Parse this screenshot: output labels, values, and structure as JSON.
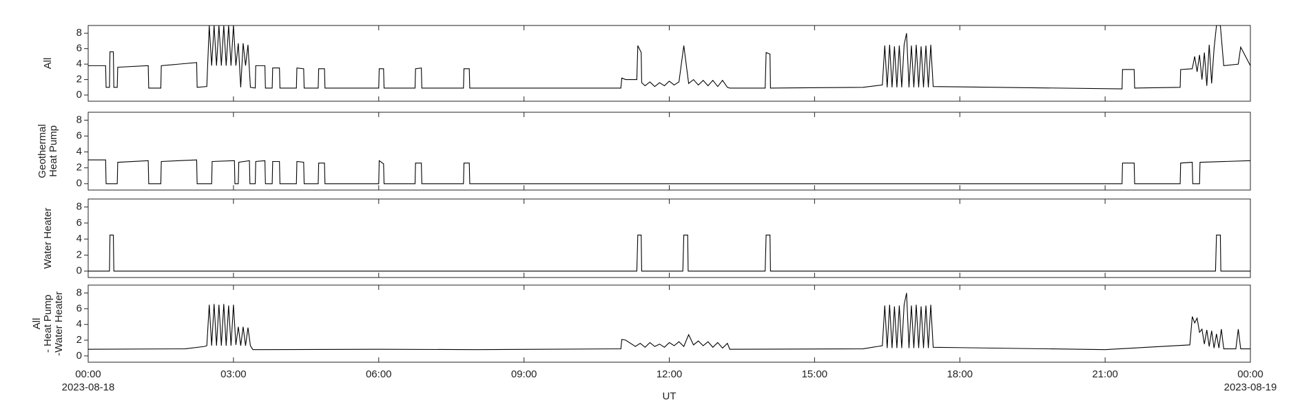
{
  "chart_data": [
    {
      "type": "line",
      "ylabel": [
        "All"
      ],
      "color": "#000000",
      "xlim": [
        0,
        24
      ],
      "ylim": [
        -0.8,
        9
      ],
      "yticks": [
        0,
        2,
        4,
        6,
        8
      ],
      "x": [
        0,
        0.36,
        0.37,
        0.44,
        0.45,
        0.52,
        0.53,
        0.6,
        0.61,
        1.24,
        1.25,
        1.5,
        1.51,
        2.24,
        2.25,
        2.45,
        2.5,
        2.55,
        2.6,
        2.65,
        2.7,
        2.75,
        2.8,
        2.85,
        2.9,
        2.95,
        3.0,
        3.05,
        3.1,
        3.15,
        3.2,
        3.25,
        3.3,
        3.35,
        3.45,
        3.46,
        3.65,
        3.66,
        3.8,
        3.81,
        3.95,
        3.96,
        4.3,
        4.31,
        4.45,
        4.46,
        4.75,
        4.76,
        4.88,
        4.89,
        6.0,
        6.01,
        6.1,
        6.11,
        6.75,
        6.76,
        6.88,
        6.89,
        7.75,
        7.76,
        7.87,
        7.88,
        11.0,
        11.02,
        11.1,
        11.33,
        11.35,
        11.42,
        11.43,
        11.5,
        11.6,
        11.7,
        11.8,
        11.9,
        12.0,
        12.1,
        12.2,
        12.3,
        12.4,
        12.5,
        12.6,
        12.7,
        12.8,
        12.9,
        13.0,
        13.1,
        13.2,
        13.25,
        13.98,
        14.0,
        14.08,
        14.09,
        16.0,
        16.4,
        16.45,
        16.5,
        16.55,
        16.6,
        16.65,
        16.7,
        16.75,
        16.8,
        16.85,
        16.9,
        16.95,
        17.0,
        17.05,
        17.1,
        17.15,
        17.2,
        17.25,
        17.3,
        17.35,
        17.4,
        17.45,
        21.35,
        21.36,
        21.6,
        21.61,
        22.55,
        22.56,
        22.8,
        22.85,
        22.9,
        22.95,
        23.0,
        23.05,
        23.1,
        23.15,
        23.2,
        23.25,
        23.3,
        23.38,
        23.45,
        23.75,
        23.8,
        24
      ],
      "values": [
        3.8,
        3.8,
        1.0,
        1.0,
        5.6,
        5.6,
        1.0,
        1.0,
        3.6,
        3.8,
        0.9,
        0.9,
        3.8,
        4.2,
        1.0,
        1.1,
        9.0,
        3.8,
        9.0,
        3.8,
        9.0,
        3.8,
        9.0,
        3.8,
        9.0,
        3.8,
        9.0,
        3.8,
        6.7,
        1.0,
        6.7,
        3.8,
        6.5,
        1.0,
        0.9,
        3.8,
        3.8,
        0.9,
        0.9,
        3.5,
        3.5,
        0.9,
        0.9,
        3.5,
        3.4,
        0.9,
        0.9,
        3.4,
        3.4,
        0.9,
        0.9,
        3.4,
        3.4,
        0.9,
        0.9,
        3.4,
        3.5,
        0.9,
        0.9,
        3.4,
        3.4,
        0.9,
        0.9,
        2.2,
        2.0,
        2.0,
        6.4,
        5.5,
        1.6,
        1.2,
        1.7,
        1.1,
        1.6,
        1.2,
        1.8,
        1.3,
        1.7,
        6.4,
        1.5,
        2.0,
        1.3,
        1.9,
        1.2,
        1.9,
        1.1,
        1.9,
        1.0,
        0.9,
        0.9,
        5.5,
        5.3,
        0.9,
        1.0,
        1.3,
        6.4,
        1.0,
        6.5,
        1.0,
        6.3,
        1.0,
        6.4,
        1.0,
        6.5,
        8.0,
        1.0,
        6.4,
        1.0,
        6.5,
        1.0,
        6.3,
        1.0,
        6.4,
        1.0,
        6.5,
        1.1,
        0.8,
        3.3,
        3.3,
        0.9,
        1.0,
        3.3,
        3.4,
        5.0,
        3.0,
        5.2,
        2.0,
        5.5,
        1.2,
        6.5,
        1.5,
        6.0,
        9.0,
        9.0,
        3.8,
        4.0,
        6.2,
        3.8
      ]
    },
    {
      "type": "line",
      "ylabel": [
        "Geothermal",
        "Heat Pump"
      ],
      "color": "#000000",
      "xlim": [
        0,
        24
      ],
      "ylim": [
        -0.8,
        9
      ],
      "yticks": [
        0,
        2,
        4,
        6,
        8
      ],
      "x": [
        0,
        0.36,
        0.37,
        0.6,
        0.61,
        1.24,
        1.25,
        1.5,
        1.51,
        2.24,
        2.25,
        2.55,
        2.56,
        3.02,
        3.03,
        3.1,
        3.11,
        3.33,
        3.34,
        3.45,
        3.46,
        3.65,
        3.66,
        3.8,
        3.81,
        3.95,
        3.96,
        4.3,
        4.31,
        4.45,
        4.46,
        4.75,
        4.76,
        4.88,
        4.89,
        6.0,
        6.01,
        6.1,
        6.11,
        6.75,
        6.76,
        6.88,
        6.89,
        7.75,
        7.76,
        7.87,
        7.88,
        21.35,
        21.36,
        21.6,
        21.61,
        22.55,
        22.56,
        22.8,
        22.81,
        22.95,
        22.96,
        24
      ],
      "values": [
        3.0,
        3.0,
        0,
        0,
        2.7,
        2.9,
        0,
        0,
        2.8,
        3.0,
        0,
        0,
        2.8,
        2.9,
        0,
        0,
        2.7,
        2.9,
        0,
        0,
        2.8,
        2.9,
        0,
        0,
        2.8,
        2.8,
        0,
        0,
        2.8,
        2.7,
        0,
        0,
        2.6,
        2.6,
        0,
        0,
        2.9,
        2.5,
        0,
        0,
        2.6,
        2.6,
        0,
        0,
        2.6,
        2.6,
        0,
        0,
        2.6,
        2.6,
        0,
        0,
        2.6,
        2.7,
        0,
        0,
        2.7,
        2.9
      ]
    },
    {
      "type": "line",
      "ylabel": [
        "Water Heater"
      ],
      "color": "#000000",
      "xlim": [
        0,
        24
      ],
      "ylim": [
        -0.8,
        9
      ],
      "yticks": [
        0,
        2,
        4,
        6,
        8
      ],
      "x": [
        0,
        0.44,
        0.45,
        0.52,
        0.53,
        11.33,
        11.35,
        11.42,
        11.43,
        12.28,
        12.3,
        12.38,
        12.39,
        13.98,
        14.0,
        14.08,
        14.09,
        23.28,
        23.3,
        23.38,
        23.39,
        24
      ],
      "values": [
        0,
        0,
        4.5,
        4.5,
        0,
        0,
        4.5,
        4.5,
        0,
        0,
        4.5,
        4.5,
        0,
        0,
        4.5,
        4.5,
        0,
        0,
        4.5,
        4.5,
        0,
        0
      ]
    },
    {
      "type": "line",
      "ylabel": [
        "All",
        "- Heat Pump",
        "-Water Heater"
      ],
      "color": "#000000",
      "xlim": [
        0,
        24
      ],
      "ylim": [
        -0.8,
        9
      ],
      "yticks": [
        0,
        2,
        4,
        6,
        8
      ],
      "x": [
        0,
        2.0,
        2.4,
        2.45,
        2.5,
        2.55,
        2.6,
        2.65,
        2.7,
        2.75,
        2.8,
        2.85,
        2.9,
        2.95,
        3.0,
        3.05,
        3.1,
        3.15,
        3.2,
        3.25,
        3.3,
        3.35,
        3.4,
        6.0,
        8.0,
        11.0,
        11.02,
        11.1,
        11.2,
        11.3,
        11.4,
        11.5,
        11.6,
        11.7,
        11.8,
        11.9,
        12.0,
        12.1,
        12.2,
        12.3,
        12.4,
        12.5,
        12.6,
        12.7,
        12.8,
        12.9,
        13.0,
        13.1,
        13.2,
        13.25,
        16.0,
        16.4,
        16.45,
        16.5,
        16.55,
        16.6,
        16.65,
        16.7,
        16.75,
        16.8,
        16.85,
        16.9,
        16.95,
        17.0,
        17.05,
        17.1,
        17.15,
        17.2,
        17.25,
        17.3,
        17.35,
        17.4,
        17.45,
        21.0,
        22.75,
        22.8,
        22.85,
        22.9,
        22.95,
        23.0,
        23.05,
        23.1,
        23.15,
        23.2,
        23.25,
        23.3,
        23.35,
        23.4,
        23.45,
        23.7,
        23.75,
        23.8,
        24
      ],
      "values": [
        0.85,
        0.9,
        1.2,
        1.3,
        6.5,
        1.3,
        6.6,
        1.3,
        6.5,
        1.3,
        6.6,
        1.3,
        6.4,
        1.3,
        6.5,
        1.4,
        3.7,
        1.3,
        3.7,
        1.3,
        3.6,
        1.3,
        0.8,
        0.85,
        0.8,
        0.9,
        2.1,
        2.0,
        1.6,
        1.2,
        1.6,
        1.1,
        1.7,
        1.2,
        1.5,
        1.1,
        1.7,
        1.3,
        1.8,
        1.2,
        2.7,
        1.4,
        1.9,
        1.3,
        1.8,
        1.1,
        1.7,
        1.0,
        1.6,
        0.85,
        0.9,
        1.3,
        6.4,
        1.0,
        6.5,
        1.0,
        6.3,
        1.0,
        6.4,
        1.0,
        6.5,
        8.0,
        1.0,
        6.4,
        1.0,
        6.5,
        1.0,
        6.3,
        1.0,
        6.4,
        1.0,
        6.5,
        1.1,
        0.8,
        1.4,
        5.0,
        4.2,
        4.8,
        3.0,
        3.4,
        1.5,
        3.3,
        1.2,
        3.2,
        1.0,
        2.8,
        1.0,
        3.4,
        0.9,
        0.9,
        3.4,
        0.9,
        0.9
      ],
      "xticks": [
        {
          "value": 0,
          "label": "00:00"
        },
        {
          "value": 3,
          "label": "03:00"
        },
        {
          "value": 6,
          "label": "06:00"
        },
        {
          "value": 9,
          "label": "09:00"
        },
        {
          "value": 12,
          "label": "12:00"
        },
        {
          "value": 15,
          "label": "15:00"
        },
        {
          "value": 18,
          "label": "18:00"
        },
        {
          "value": 21,
          "label": "21:00"
        },
        {
          "value": 24,
          "label": "00:00"
        }
      ],
      "start_date": "2023-08-18",
      "end_date": "2023-08-19",
      "xlabel": "UT"
    }
  ]
}
